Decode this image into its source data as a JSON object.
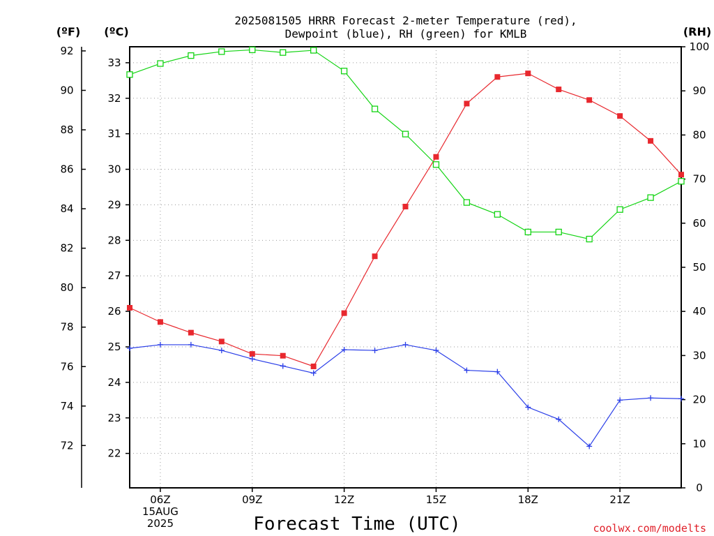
{
  "chart_data": {
    "type": "line",
    "title": "2025081505 HRRR Forecast 2-meter Temperature (red),",
    "subtitle": "Dewpoint (blue), RH (green) for KMLB",
    "xlabel": "Forecast Time (UTC)",
    "credit": "coolwx.com/modelts",
    "units": {
      "left_outer": "(ºF)",
      "left_inner": "(ºC)",
      "right": "(RH)"
    },
    "x": [
      "05Z",
      "06Z",
      "07Z",
      "08Z",
      "09Z",
      "10Z",
      "11Z",
      "12Z",
      "13Z",
      "14Z",
      "15Z",
      "16Z",
      "17Z",
      "18Z",
      "19Z",
      "20Z",
      "21Z",
      "22Z",
      "23Z"
    ],
    "x_tick_labels": [
      {
        "hour": "06Z",
        "lines": [
          "06Z",
          "15AUG",
          "2025"
        ]
      },
      {
        "hour": "09Z",
        "lines": [
          "09Z"
        ]
      },
      {
        "hour": "12Z",
        "lines": [
          "12Z"
        ]
      },
      {
        "hour": "15Z",
        "lines": [
          "15Z"
        ]
      },
      {
        "hour": "18Z",
        "lines": [
          "18Z"
        ]
      },
      {
        "hour": "21Z",
        "lines": [
          "21Z"
        ]
      }
    ],
    "y_celsius_ticks": [
      22,
      23,
      24,
      25,
      26,
      27,
      28,
      29,
      30,
      31,
      32,
      33
    ],
    "y_fahrenheit_ticks": [
      72,
      74,
      76,
      78,
      80,
      82,
      84,
      86,
      88,
      90,
      92
    ],
    "y_rh_ticks": [
      0,
      10,
      20,
      30,
      40,
      50,
      60,
      70,
      80,
      90,
      100
    ],
    "ylim_celsius": [
      21.03,
      33.45
    ],
    "ylim_rh": [
      0,
      100
    ],
    "grid": true,
    "series": [
      {
        "name": "Temperature",
        "axis": "celsius",
        "color": "#e8282e",
        "marker": "filled-square",
        "values": [
          26.1,
          25.7,
          25.4,
          25.15,
          24.8,
          24.75,
          24.45,
          25.95,
          27.55,
          28.95,
          30.35,
          31.85,
          32.6,
          32.7,
          32.25,
          31.95,
          31.5,
          30.8,
          29.85
        ]
      },
      {
        "name": "Dewpoint",
        "axis": "celsius",
        "color": "#2a3ee8",
        "marker": "plus",
        "values": [
          24.96,
          25.06,
          25.06,
          24.9,
          24.66,
          24.46,
          24.26,
          24.92,
          24.9,
          25.06,
          24.9,
          24.34,
          24.3,
          23.3,
          22.96,
          22.2,
          23.5,
          23.56,
          23.54
        ]
      },
      {
        "name": "RH",
        "axis": "rh",
        "color": "#12d412",
        "marker": "open-square",
        "values": [
          93.7,
          96.2,
          98.0,
          98.9,
          99.3,
          98.7,
          99.2,
          94.5,
          85.9,
          80.2,
          73.3,
          64.7,
          62.0,
          58.0,
          58.0,
          56.4,
          63.1,
          65.8,
          69.5
        ]
      }
    ]
  }
}
